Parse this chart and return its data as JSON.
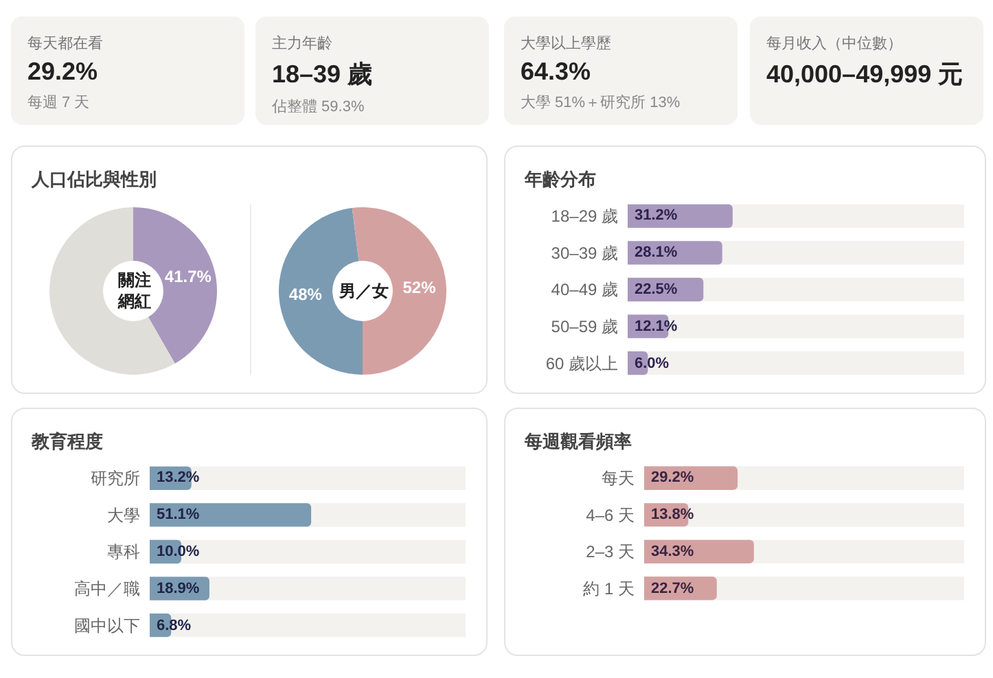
{
  "chart_data": [
    {
      "type": "other",
      "title": "每天都在看",
      "annotations": [
        "29.2%",
        "每週 7 天"
      ]
    },
    {
      "type": "other",
      "title": "主力年齡",
      "annotations": [
        "18–39 歲",
        "佔整體 59.3%"
      ]
    },
    {
      "type": "other",
      "title": "大學以上學歷",
      "annotations": [
        "64.3%",
        "大學 51%＋研究所 13%"
      ]
    },
    {
      "type": "other",
      "title": "每月收入（中位數）",
      "annotations": [
        "40,000–49,999 元"
      ]
    },
    {
      "type": "donut",
      "title": "人口佔比與性別",
      "categories": [
        null,
        null
      ],
      "values": [
        41.7,
        58.3
      ],
      "colors": [
        "#a898bd",
        "#dfded9"
      ],
      "value_labels": [
        "41.7%",
        null
      ],
      "annotations": [
        "關注網紅"
      ]
    },
    {
      "type": "donut",
      "categories": [
        null,
        null
      ],
      "values": [
        48,
        52
      ],
      "colors": [
        "#7b9bb3",
        "#d4a1a1"
      ],
      "value_labels": [
        "48%",
        "52%"
      ],
      "annotations": [
        "男／女"
      ]
    },
    {
      "type": "bar",
      "orientation": "horizontal",
      "title": "年齡分布",
      "categories": [
        "18–29 歲",
        "30–39 歲",
        "40–49 歲",
        "50–59 歲",
        "60 歲以上"
      ],
      "values": [
        31.2,
        28.1,
        22.5,
        12.1,
        6.0
      ],
      "value_labels": [
        "31.2%",
        "28.1%",
        "22.5%",
        "12.1%",
        "6.0%"
      ],
      "color": "#a898bd",
      "xlim": [
        0,
        100
      ],
      "tick_labels": "y"
    },
    {
      "type": "bar",
      "orientation": "horizontal",
      "title": "教育程度",
      "categories": [
        "研究所",
        "大學",
        "專科",
        "高中／職",
        "國中以下"
      ],
      "values": [
        13.2,
        51.1,
        10.0,
        18.9,
        6.8
      ],
      "value_labels": [
        "13.2%",
        "51.1%",
        "10.0%",
        "18.9%",
        "6.8%"
      ],
      "color": "#7b9bb3",
      "xlim": [
        0,
        100
      ],
      "tick_labels": "y"
    },
    {
      "type": "bar",
      "orientation": "horizontal",
      "title": "每週觀看頻率",
      "categories": [
        "每天",
        "4–6 天",
        "2–3 天",
        "約 1 天"
      ],
      "values": [
        29.2,
        13.8,
        34.3,
        22.7
      ],
      "value_labels": [
        "29.2%",
        "13.8%",
        "34.3%",
        "22.7%"
      ],
      "color": "#d4a1a1",
      "xlim": [
        0,
        100
      ],
      "tick_labels": "y"
    }
  ]
}
